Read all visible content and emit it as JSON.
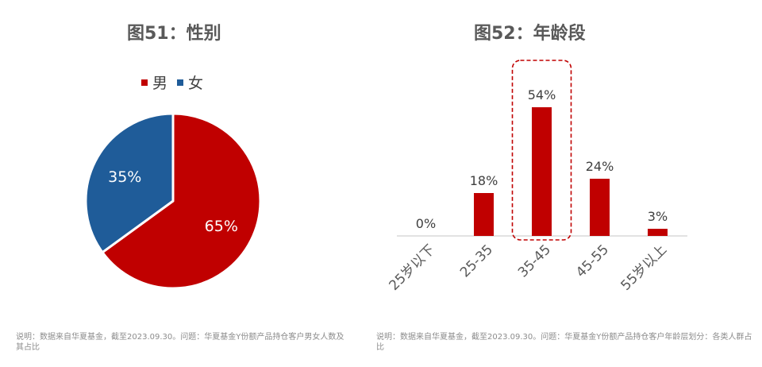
{
  "left": {
    "title": "图51：性别",
    "note": "说明：数据来自华夏基金，截至2023.09.30。问题：华夏基金Y份额产品持仓客户男女人数及其占比"
  },
  "right": {
    "title": "图52：年龄段",
    "note": "说明：数据来自华夏基金，截至2023.09.30。问题：华夏基金Y份额产品持仓客户年龄层划分：各类人群占比"
  },
  "chart_data": [
    {
      "type": "pie",
      "title": "图51：性别",
      "legend_position": "top",
      "slices": [
        {
          "name": "男",
          "value": 65,
          "label": "65%",
          "color": "#C00000"
        },
        {
          "name": "女",
          "value": 35,
          "label": "35%",
          "color": "#1F5C99"
        }
      ]
    },
    {
      "type": "bar",
      "title": "图52：年龄段",
      "categories": [
        "25岁以下",
        "25-35",
        "35-45",
        "45-55",
        "55岁以上"
      ],
      "values": [
        0,
        18,
        54,
        24,
        3
      ],
      "labels": [
        "0%",
        "18%",
        "54%",
        "24%",
        "3%"
      ],
      "color": "#C00000",
      "highlight_category": "35-45",
      "ylim": [
        0,
        60
      ],
      "grid": false
    }
  ]
}
